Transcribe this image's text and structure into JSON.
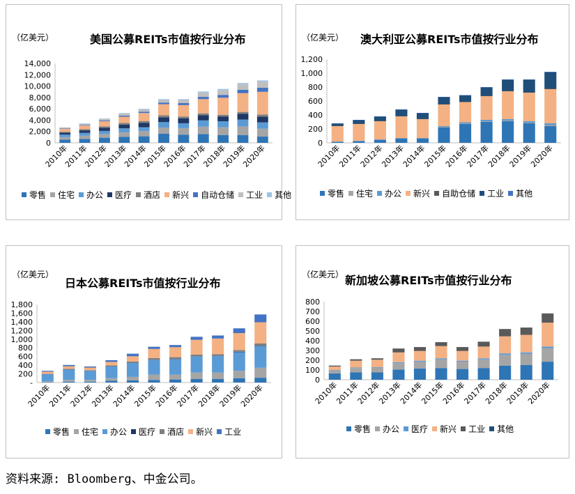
{
  "source_note": "资料来源: Bloomberg、中金公司。",
  "chart_data": [
    {
      "type": "bar",
      "stacked": true,
      "title": "美国公募REITs市值按行业分布",
      "unit_label": "（亿美元）",
      "ylim": [
        0,
        14000
      ],
      "yticks": [
        "0",
        "2,000",
        "4,000",
        "6,000",
        "8,000",
        "10,000",
        "12,000",
        "14,000"
      ],
      "ytick_values": [
        0,
        2000,
        4000,
        6000,
        8000,
        10000,
        12000,
        14000
      ],
      "categories": [
        "2010年",
        "2011年",
        "2012年",
        "2013年",
        "2014年",
        "2015年",
        "2016年",
        "2017年",
        "2018年",
        "2019年",
        "2020年"
      ],
      "legend_position": "bottom",
      "series": [
        {
          "name": "零售",
          "color": "#2e75b6",
          "values": [
            550,
            700,
            900,
            1050,
            1150,
            1600,
            1450,
            1550,
            1350,
            1350,
            1100
          ]
        },
        {
          "name": "住宅",
          "color": "#a5a5a5",
          "values": [
            450,
            550,
            650,
            800,
            900,
            1100,
            1150,
            1300,
            1400,
            1550,
            1400
          ]
        },
        {
          "name": "办公",
          "color": "#5b9bd5",
          "values": [
            450,
            500,
            550,
            700,
            700,
            950,
            850,
            1100,
            1050,
            1200,
            1100
          ]
        },
        {
          "name": "医疗",
          "color": "#1f3864",
          "values": [
            350,
            450,
            550,
            650,
            750,
            850,
            850,
            900,
            850,
            1000,
            1000
          ]
        },
        {
          "name": "酒店",
          "color": "#7f7f7f",
          "values": [
            150,
            200,
            250,
            300,
            350,
            350,
            350,
            350,
            300,
            350,
            400
          ]
        },
        {
          "name": "新兴",
          "color": "#f4b183",
          "values": [
            500,
            650,
            900,
            1100,
            1400,
            1950,
            2000,
            2500,
            3000,
            3300,
            4000
          ]
        },
        {
          "name": "自动仓储",
          "color": "#4472c4",
          "values": [
            80,
            100,
            150,
            200,
            250,
            300,
            350,
            400,
            500,
            600,
            700
          ]
        },
        {
          "name": "工业",
          "color": "#bfbfbf",
          "values": [
            150,
            200,
            250,
            350,
            400,
            450,
            550,
            750,
            850,
            1000,
            1100
          ]
        },
        {
          "name": "其他",
          "color": "#9dc3e6",
          "values": [
            50,
            80,
            100,
            100,
            100,
            150,
            150,
            200,
            200,
            200,
            200
          ]
        }
      ]
    },
    {
      "type": "bar",
      "stacked": true,
      "title": "澳大利亚公募REITs市值按行业分布",
      "unit_label": "（亿美元）",
      "ylim": [
        0,
        1200
      ],
      "yticks": [
        "0",
        "200",
        "400",
        "600",
        "800",
        "1,000",
        "1,200"
      ],
      "ytick_values": [
        0,
        200,
        400,
        600,
        800,
        1000,
        1200
      ],
      "categories": [
        "2010年",
        "2011年",
        "2012年",
        "2013年",
        "2014年",
        "2015年",
        "2016年",
        "2017年",
        "2018年",
        "2019年",
        "2020年"
      ],
      "legend_position": "bottom",
      "series": [
        {
          "name": "零售",
          "color": "#2e75b6",
          "values": [
            10,
            20,
            40,
            60,
            60,
            220,
            270,
            300,
            310,
            280,
            240
          ]
        },
        {
          "name": "住宅",
          "color": "#a5a5a5",
          "values": [
            5,
            5,
            5,
            5,
            5,
            10,
            10,
            10,
            10,
            10,
            15
          ]
        },
        {
          "name": "办公",
          "color": "#5b9bd5",
          "values": [
            5,
            5,
            5,
            5,
            5,
            10,
            15,
            20,
            20,
            20,
            25
          ]
        },
        {
          "name": "新兴",
          "color": "#f4b183",
          "values": [
            220,
            240,
            260,
            310,
            270,
            310,
            290,
            340,
            400,
            410,
            490
          ]
        },
        {
          "name": "自助仓储",
          "color": "#595959",
          "values": [
            5,
            5,
            5,
            5,
            5,
            5,
            5,
            5,
            5,
            5,
            10
          ]
        },
        {
          "name": "工业",
          "color": "#1f4e79",
          "values": [
            30,
            50,
            60,
            90,
            80,
            100,
            90,
            120,
            160,
            180,
            230
          ]
        },
        {
          "name": "其他",
          "color": "#4472c4",
          "values": [
            5,
            5,
            5,
            5,
            5,
            5,
            5,
            5,
            5,
            5,
            10
          ]
        }
      ]
    },
    {
      "type": "bar",
      "stacked": true,
      "title": "日本公募REITs市值按行业分布",
      "unit_label": "（亿美元）",
      "ylim": [
        0,
        1800
      ],
      "yticks": [
        "-",
        "200",
        "400",
        "600",
        "800",
        "1,000",
        "1,200",
        "1,400",
        "1,600",
        "1,800"
      ],
      "ytick_values": [
        0,
        200,
        400,
        600,
        800,
        1000,
        1200,
        1400,
        1600,
        1800
      ],
      "categories": [
        "2010年",
        "2011年",
        "2012年",
        "2013年",
        "2014年",
        "2015年",
        "2016年",
        "2017年",
        "2018年",
        "2019年",
        "2020年"
      ],
      "legend_position": "bottom",
      "series": [
        {
          "name": "零售",
          "color": "#2e75b6",
          "values": [
            10,
            20,
            20,
            40,
            50,
            60,
            70,
            80,
            80,
            100,
            110
          ]
        },
        {
          "name": "住宅",
          "color": "#a5a5a5",
          "values": [
            20,
            40,
            40,
            60,
            80,
            120,
            110,
            150,
            150,
            170,
            230
          ]
        },
        {
          "name": "办公",
          "color": "#5b9bd5",
          "values": [
            160,
            240,
            210,
            270,
            320,
            340,
            360,
            370,
            380,
            430,
            500
          ]
        },
        {
          "name": "医疗",
          "color": "#1f3864",
          "values": [
            5,
            5,
            5,
            5,
            5,
            5,
            5,
            5,
            5,
            10,
            10
          ]
        },
        {
          "name": "酒店",
          "color": "#7f7f7f",
          "values": [
            5,
            10,
            10,
            20,
            30,
            40,
            40,
            40,
            40,
            40,
            50
          ]
        },
        {
          "name": "新兴",
          "color": "#f4b183",
          "values": [
            50,
            60,
            60,
            80,
            120,
            210,
            230,
            340,
            360,
            390,
            490
          ]
        },
        {
          "name": "工业",
          "color": "#4472c4",
          "values": [
            20,
            30,
            25,
            40,
            60,
            50,
            50,
            70,
            70,
            110,
            180
          ]
        }
      ]
    },
    {
      "type": "bar",
      "stacked": true,
      "title": "新加坡公募REITs市值按行业分布",
      "unit_label": "（亿美元）",
      "ylim": [
        0,
        800
      ],
      "yticks": [
        "0",
        "100",
        "200",
        "300",
        "400",
        "500",
        "600",
        "700",
        "800"
      ],
      "ytick_values": [
        0,
        100,
        200,
        300,
        400,
        500,
        600,
        700,
        800
      ],
      "categories": [
        "2010年",
        "2011年",
        "2012年",
        "2013年",
        "2014年",
        "2015年",
        "2016年",
        "2017年",
        "2018年",
        "2019年",
        "2020年"
      ],
      "legend_position": "bottom",
      "series": [
        {
          "name": "零售",
          "color": "#2e75b6",
          "values": [
            65,
            75,
            75,
            105,
            115,
            120,
            110,
            120,
            145,
            150,
            185
          ]
        },
        {
          "name": "办公",
          "color": "#a5a5a5",
          "values": [
            30,
            45,
            50,
            65,
            70,
            90,
            75,
            90,
            110,
            115,
            140
          ]
        },
        {
          "name": "医疗",
          "color": "#5b9bd5",
          "values": [
            5,
            5,
            5,
            10,
            10,
            10,
            10,
            10,
            15,
            15,
            15
          ]
        },
        {
          "name": "新兴",
          "color": "#f4b183",
          "values": [
            35,
            70,
            75,
            100,
            100,
            125,
            100,
            120,
            175,
            180,
            245
          ]
        },
        {
          "name": "工业",
          "color": "#595959",
          "values": [
            10,
            15,
            15,
            40,
            40,
            40,
            40,
            50,
            75,
            75,
            95
          ]
        },
        {
          "name": "其他",
          "color": "#1f4e79",
          "values": [
            0,
            0,
            0,
            0,
            0,
            0,
            0,
            0,
            0,
            0,
            0
          ]
        }
      ]
    }
  ]
}
